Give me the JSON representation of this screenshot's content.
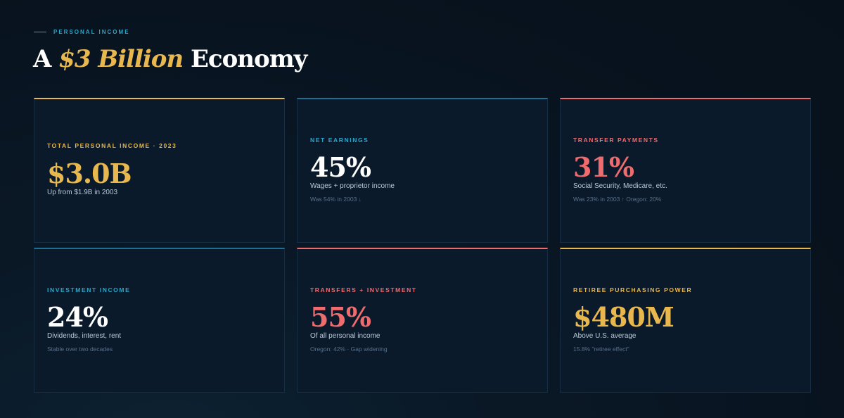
{
  "header": {
    "eyebrow": "PERSONAL INCOME",
    "title_prefix": "A ",
    "title_highlight": "$3 Billion",
    "title_suffix": " Economy"
  },
  "colors": {
    "gold": "#e8b84f",
    "blue": "#2aa6c8",
    "coral": "#ee6b6e",
    "background": "#08131f",
    "card": "#0b1a2b"
  },
  "cards": [
    {
      "label": "TOTAL PERSONAL INCOME · 2023",
      "value": "$3.0B",
      "description": "Up from $1.9B in 2003",
      "note": ""
    },
    {
      "label": "NET EARNINGS",
      "value": "45%",
      "description": "Wages + proprietor income",
      "note": "Was 54% in 2003 ↓"
    },
    {
      "label": "TRANSFER PAYMENTS",
      "value": "31%",
      "description": "Social Security, Medicare, etc.",
      "note": "Was 23% in 2003 ↑ Oregon: 20%"
    },
    {
      "label": "INVESTMENT INCOME",
      "value": "24%",
      "description": "Dividends, interest, rent",
      "note": "Stable over two decades"
    },
    {
      "label": "TRANSFERS + INVESTMENT",
      "value": "55%",
      "description": "Of all personal income",
      "note": "Oregon: 42% · Gap widening"
    },
    {
      "label": "RETIREE PURCHASING POWER",
      "value": "$480M",
      "description": "Above U.S. average",
      "note": "15.8% \"retiree effect\""
    }
  ]
}
